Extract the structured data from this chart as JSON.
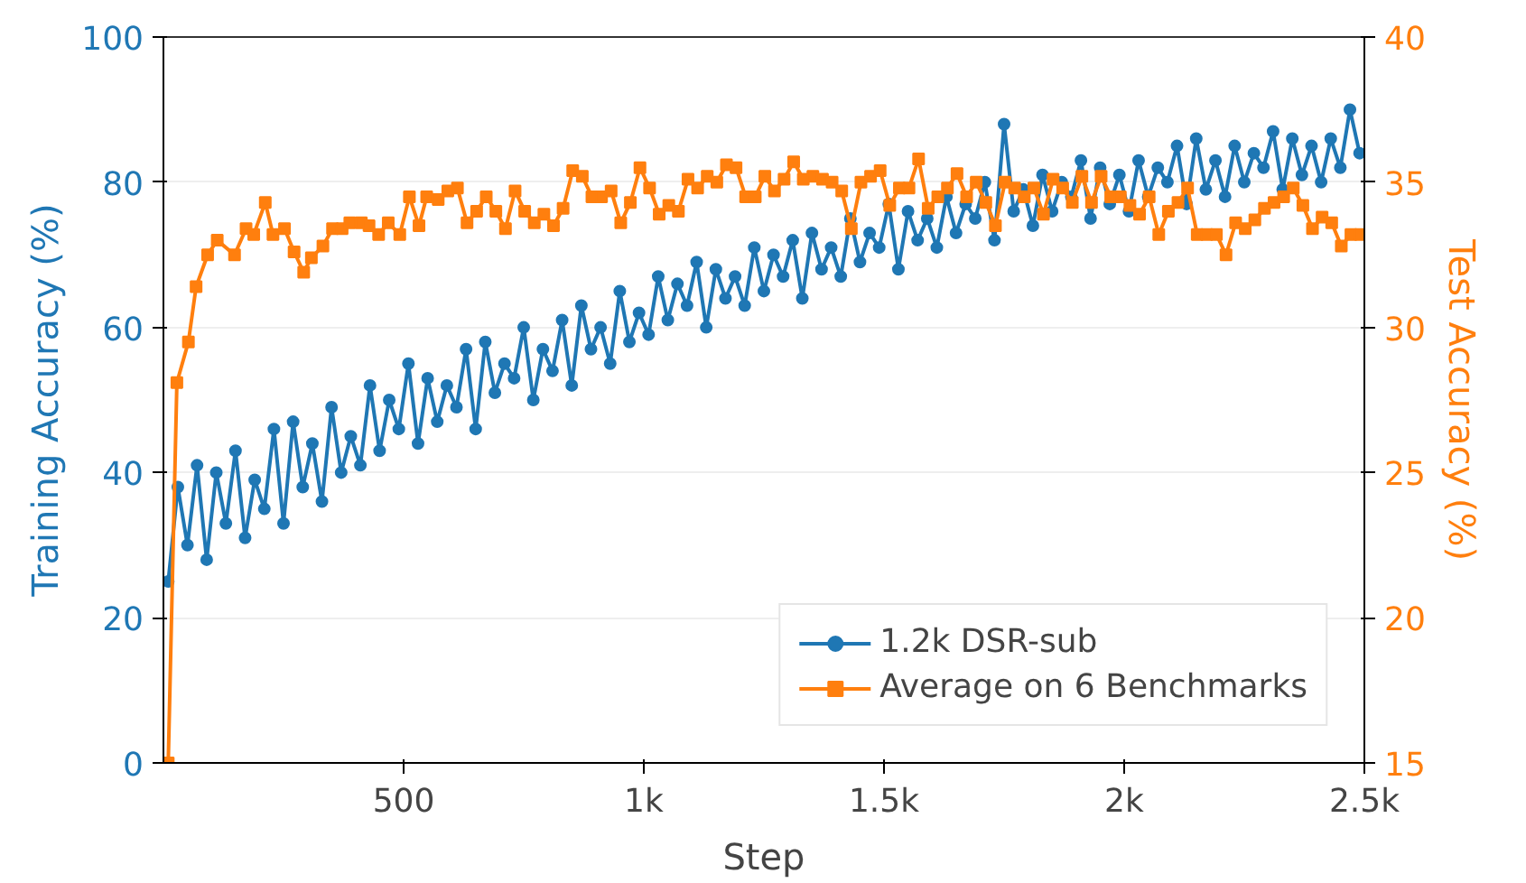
{
  "chart_data": {
    "type": "line",
    "xlabel": "Step",
    "ylabel": "Training Accuracy (%)",
    "y2label": "Test Accuracy (%)",
    "xlim": [
      0,
      2500
    ],
    "xticks": [
      {
        "value": 500,
        "label": "500"
      },
      {
        "value": 1000,
        "label": "1k"
      },
      {
        "value": 1500,
        "label": "1.5k"
      },
      {
        "value": 2000,
        "label": "2k"
      },
      {
        "value": 2500,
        "label": "2.5k"
      }
    ],
    "ylim": [
      0,
      100
    ],
    "yticks": [
      0,
      20,
      40,
      60,
      80,
      100
    ],
    "y2lim": [
      15,
      40
    ],
    "y2ticks": [
      15,
      20,
      25,
      30,
      35,
      40
    ],
    "grid": "y",
    "legend": "bottom right",
    "line_style": "solid",
    "series": [
      {
        "name": "1.2k DSR-sub",
        "color": "#1f77b4",
        "marker": "circle",
        "x": [
          10,
          30,
          50,
          70,
          90,
          110,
          130,
          150,
          170,
          190,
          210,
          230,
          250,
          270,
          290,
          310,
          330,
          350,
          370,
          390,
          410,
          430,
          450,
          470,
          490,
          510,
          530,
          550,
          570,
          590,
          610,
          630,
          650,
          670,
          690,
          710,
          730,
          750,
          770,
          790,
          810,
          830,
          850,
          870,
          890,
          910,
          930,
          950,
          970,
          990,
          1010,
          1030,
          1050,
          1070,
          1090,
          1110,
          1130,
          1150,
          1170,
          1190,
          1210,
          1230,
          1250,
          1270,
          1290,
          1310,
          1330,
          1350,
          1370,
          1390,
          1410,
          1430,
          1450,
          1470,
          1490,
          1510,
          1530,
          1550,
          1570,
          1590,
          1610,
          1630,
          1650,
          1670,
          1690,
          1710,
          1730,
          1750,
          1770,
          1790,
          1810,
          1830,
          1850,
          1870,
          1890,
          1910,
          1930,
          1950,
          1970,
          1990,
          2010,
          2030,
          2050,
          2070,
          2090,
          2110,
          2130,
          2150,
          2170,
          2190,
          2210,
          2230,
          2250,
          2270,
          2290,
          2310,
          2330,
          2350,
          2370,
          2390,
          2410,
          2430,
          2450,
          2470,
          2490
        ],
        "values": [
          25,
          38,
          30,
          41,
          28,
          40,
          33,
          43,
          31,
          39,
          35,
          46,
          33,
          47,
          38,
          44,
          36,
          49,
          40,
          45,
          41,
          52,
          43,
          50,
          46,
          55,
          44,
          53,
          47,
          52,
          49,
          57,
          46,
          58,
          51,
          55,
          53,
          60,
          50,
          57,
          54,
          61,
          52,
          63,
          57,
          60,
          55,
          65,
          58,
          62,
          59,
          67,
          61,
          66,
          63,
          69,
          60,
          68,
          64,
          67,
          63,
          71,
          65,
          70,
          67,
          72,
          64,
          73,
          68,
          71,
          67,
          75,
          69,
          73,
          71,
          77,
          68,
          76,
          72,
          75,
          71,
          78,
          73,
          77,
          75,
          80,
          72,
          88,
          76,
          79,
          74,
          81,
          76,
          80,
          78,
          83,
          75,
          82,
          77,
          81,
          76,
          83,
          78,
          82,
          80,
          85,
          77,
          86,
          79,
          83,
          78,
          85,
          80,
          84,
          82,
          87,
          79,
          86,
          81,
          85,
          80,
          86,
          82,
          90,
          84
        ]
      },
      {
        "name": "Average on 6 Benchmarks",
        "color": "#ff7f0e",
        "marker": "square",
        "axis": "y2",
        "x": [
          10,
          28,
          52,
          68,
          92,
          112,
          148,
          172,
          188,
          212,
          228,
          252,
          272,
          292,
          308,
          332,
          352,
          372,
          388,
          412,
          428,
          448,
          468,
          492,
          512,
          532,
          548,
          572,
          592,
          612,
          632,
          652,
          672,
          692,
          712,
          732,
          752,
          772,
          792,
          812,
          832,
          852,
          872,
          892,
          912,
          932,
          952,
          972,
          992,
          1012,
          1032,
          1052,
          1072,
          1092,
          1112,
          1132,
          1152,
          1172,
          1192,
          1212,
          1232,
          1252,
          1272,
          1292,
          1312,
          1332,
          1352,
          1372,
          1392,
          1412,
          1432,
          1452,
          1472,
          1492,
          1512,
          1532,
          1552,
          1572,
          1592,
          1612,
          1632,
          1652,
          1672,
          1692,
          1712,
          1732,
          1752,
          1772,
          1792,
          1812,
          1832,
          1852,
          1872,
          1892,
          1912,
          1932,
          1952,
          1972,
          1992,
          2012,
          2032,
          2052,
          2072,
          2092,
          2112,
          2132,
          2152,
          2172,
          2192,
          2212,
          2232,
          2252,
          2272,
          2292,
          2312,
          2332,
          2352,
          2372,
          2392,
          2412,
          2432,
          2452,
          2472,
          2492
        ],
        "values": [
          15,
          28.1,
          29.5,
          31.4,
          32.5,
          33.0,
          32.5,
          33.4,
          33.2,
          34.3,
          33.2,
          33.4,
          32.6,
          31.9,
          32.4,
          32.8,
          33.4,
          33.4,
          33.6,
          33.6,
          33.5,
          33.2,
          33.6,
          33.2,
          34.5,
          33.5,
          34.5,
          34.4,
          34.7,
          34.8,
          33.6,
          34.0,
          34.5,
          34.0,
          33.4,
          34.7,
          34.0,
          33.6,
          33.9,
          33.5,
          34.1,
          35.4,
          35.2,
          34.5,
          34.5,
          34.7,
          33.6,
          34.3,
          35.5,
          34.8,
          33.9,
          34.2,
          34.0,
          35.1,
          34.8,
          35.2,
          35.0,
          35.6,
          35.5,
          34.5,
          34.5,
          35.2,
          34.7,
          35.1,
          35.7,
          35.1,
          35.2,
          35.1,
          35.0,
          34.7,
          33.4,
          35.0,
          35.2,
          35.4,
          34.2,
          34.8,
          34.8,
          35.8,
          34.1,
          34.5,
          34.8,
          35.3,
          34.5,
          35.0,
          34.3,
          33.5,
          35.0,
          34.8,
          34.5,
          34.8,
          33.9,
          35.1,
          34.8,
          34.3,
          35.2,
          34.3,
          35.2,
          34.5,
          34.5,
          34.2,
          33.9,
          34.5,
          33.2,
          34.0,
          34.3,
          34.8,
          33.2,
          33.2,
          33.2,
          32.5,
          33.6,
          33.4,
          33.7,
          34.1,
          34.3,
          34.5,
          34.8,
          34.2,
          33.4,
          33.8,
          33.6,
          32.8,
          33.2,
          33.2
        ]
      }
    ]
  }
}
